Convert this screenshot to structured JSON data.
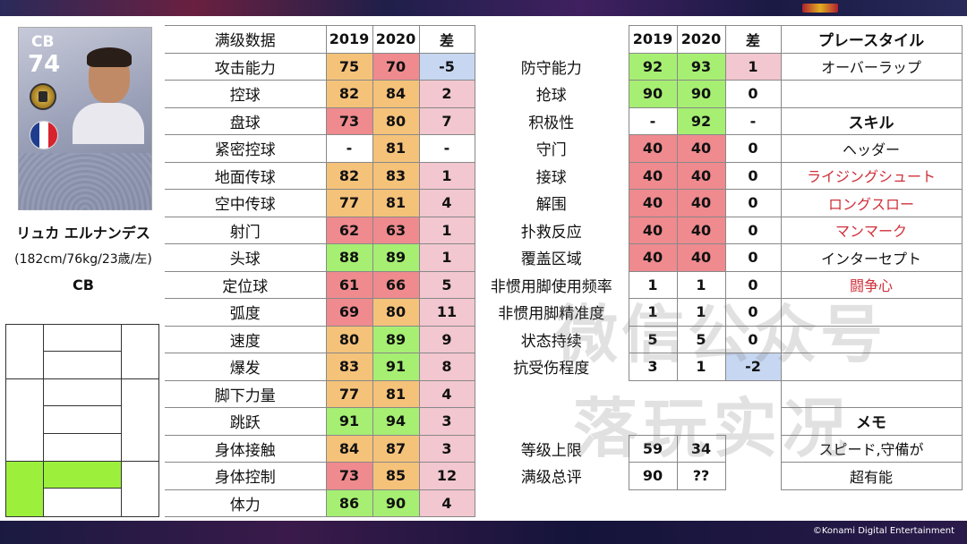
{
  "colors": {
    "orange": "#f5c27a",
    "red": "#ef8a8e",
    "green": "#a6ef72",
    "pink": "#f2c7cf",
    "blue": "#c7d7f2",
    "skill_red": "#d0303a"
  },
  "player": {
    "position": "CB",
    "overall": "74",
    "name": "リュカ エルナンデス",
    "info": "(182cm/76kg/23歳/左)",
    "position_label": "CB",
    "nationality_flag": "france-flag",
    "badge_icon": "league-badge-icon"
  },
  "left_table": {
    "header": [
      "满级数据",
      "2019",
      "2020",
      "差"
    ],
    "rows": [
      {
        "label": "攻击能力",
        "v2019": "75",
        "v2020": "70",
        "diff": "-5",
        "c2019": "orange",
        "c2020": "red",
        "cdiff": "blue"
      },
      {
        "label": "控球",
        "v2019": "82",
        "v2020": "84",
        "diff": "2",
        "c2019": "orange",
        "c2020": "orange",
        "cdiff": "pink"
      },
      {
        "label": "盘球",
        "v2019": "73",
        "v2020": "80",
        "diff": "7",
        "c2019": "red",
        "c2020": "orange",
        "cdiff": "pink"
      },
      {
        "label": "紧密控球",
        "v2019": "-",
        "v2020": "81",
        "diff": "-",
        "c2019": "white",
        "c2020": "orange",
        "cdiff": "white"
      },
      {
        "label": "地面传球",
        "v2019": "82",
        "v2020": "83",
        "diff": "1",
        "c2019": "orange",
        "c2020": "orange",
        "cdiff": "pink"
      },
      {
        "label": "空中传球",
        "v2019": "77",
        "v2020": "81",
        "diff": "4",
        "c2019": "orange",
        "c2020": "orange",
        "cdiff": "pink"
      },
      {
        "label": "射门",
        "v2019": "62",
        "v2020": "63",
        "diff": "1",
        "c2019": "red",
        "c2020": "red",
        "cdiff": "pink"
      },
      {
        "label": "头球",
        "v2019": "88",
        "v2020": "89",
        "diff": "1",
        "c2019": "green",
        "c2020": "green",
        "cdiff": "pink"
      },
      {
        "label": "定位球",
        "v2019": "61",
        "v2020": "66",
        "diff": "5",
        "c2019": "red",
        "c2020": "red",
        "cdiff": "pink"
      },
      {
        "label": "弧度",
        "v2019": "69",
        "v2020": "80",
        "diff": "11",
        "c2019": "red",
        "c2020": "orange",
        "cdiff": "pink"
      },
      {
        "label": "速度",
        "v2019": "80",
        "v2020": "89",
        "diff": "9",
        "c2019": "orange",
        "c2020": "green",
        "cdiff": "pink"
      },
      {
        "label": "爆发",
        "v2019": "83",
        "v2020": "91",
        "diff": "8",
        "c2019": "orange",
        "c2020": "green",
        "cdiff": "pink"
      },
      {
        "label": "脚下力量",
        "v2019": "77",
        "v2020": "81",
        "diff": "4",
        "c2019": "orange",
        "c2020": "orange",
        "cdiff": "pink"
      },
      {
        "label": "跳跃",
        "v2019": "91",
        "v2020": "94",
        "diff": "3",
        "c2019": "green",
        "c2020": "green",
        "cdiff": "pink"
      },
      {
        "label": "身体接触",
        "v2019": "84",
        "v2020": "87",
        "diff": "3",
        "c2019": "orange",
        "c2020": "orange",
        "cdiff": "pink"
      },
      {
        "label": "身体控制",
        "v2019": "73",
        "v2020": "85",
        "diff": "12",
        "c2019": "red",
        "c2020": "orange",
        "cdiff": "pink"
      },
      {
        "label": "体力",
        "v2019": "86",
        "v2020": "90",
        "diff": "4",
        "c2019": "green",
        "c2020": "green",
        "cdiff": "pink"
      }
    ]
  },
  "right_table": {
    "header": [
      "",
      "2019",
      "2020",
      "差",
      "プレースタイル"
    ],
    "rows": [
      {
        "label": "防守能力",
        "v2019": "92",
        "v2020": "93",
        "diff": "1",
        "c2019": "green",
        "c2020": "green",
        "cdiff": "pink",
        "side": "オーバーラップ",
        "side_style": "normal"
      },
      {
        "label": "抢球",
        "v2019": "90",
        "v2020": "90",
        "diff": "0",
        "c2019": "green",
        "c2020": "green",
        "cdiff": "white",
        "side": "",
        "side_style": "normal"
      },
      {
        "label": "积极性",
        "v2019": "-",
        "v2020": "92",
        "diff": "-",
        "c2019": "white",
        "c2020": "green",
        "cdiff": "white",
        "side": "スキル",
        "side_style": "head"
      },
      {
        "label": "守门",
        "v2019": "40",
        "v2020": "40",
        "diff": "0",
        "c2019": "red",
        "c2020": "red",
        "cdiff": "white",
        "side": "ヘッダー",
        "side_style": "normal"
      },
      {
        "label": "接球",
        "v2019": "40",
        "v2020": "40",
        "diff": "0",
        "c2019": "red",
        "c2020": "red",
        "cdiff": "white",
        "side": "ライジングシュート",
        "side_style": "red"
      },
      {
        "label": "解围",
        "v2019": "40",
        "v2020": "40",
        "diff": "0",
        "c2019": "red",
        "c2020": "red",
        "cdiff": "white",
        "side": "ロングスロー",
        "side_style": "red"
      },
      {
        "label": "扑救反应",
        "v2019": "40",
        "v2020": "40",
        "diff": "0",
        "c2019": "red",
        "c2020": "red",
        "cdiff": "white",
        "side": "マンマーク",
        "side_style": "red"
      },
      {
        "label": "覆盖区域",
        "v2019": "40",
        "v2020": "40",
        "diff": "0",
        "c2019": "red",
        "c2020": "red",
        "cdiff": "white",
        "side": "インターセプト",
        "side_style": "normal"
      },
      {
        "label": "非惯用脚使用频率",
        "v2019": "1",
        "v2020": "1",
        "diff": "0",
        "c2019": "white",
        "c2020": "white",
        "cdiff": "white",
        "side": "闘争心",
        "side_style": "red"
      },
      {
        "label": "非惯用脚精准度",
        "v2019": "1",
        "v2020": "1",
        "diff": "0",
        "c2019": "white",
        "c2020": "white",
        "cdiff": "white",
        "side": "",
        "side_style": "normal"
      },
      {
        "label": "状态持续",
        "v2019": "5",
        "v2020": "5",
        "diff": "0",
        "c2019": "white",
        "c2020": "white",
        "cdiff": "white",
        "side": "",
        "side_style": "normal"
      },
      {
        "label": "抗受伤程度",
        "v2019": "3",
        "v2020": "1",
        "diff": "-2",
        "c2019": "white",
        "c2020": "white",
        "cdiff": "blue",
        "side": "",
        "side_style": "normal"
      }
    ],
    "memo_title": "メモ",
    "level_row": {
      "label": "等级上限",
      "v2019": "59",
      "v2020": "34",
      "memo": "スピード,守備が"
    },
    "total_row": {
      "label": "满级总评",
      "v2019": "90",
      "v2020": "??",
      "memo": "超有能"
    }
  },
  "watermark": {
    "line1": "微信公众号",
    "line2": "落玩实况"
  },
  "copyright": "©Konami Digital Entertainment"
}
